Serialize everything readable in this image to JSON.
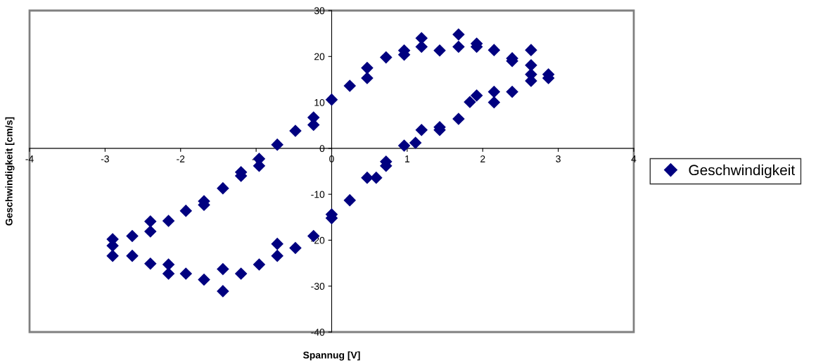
{
  "chart_data": {
    "type": "scatter",
    "xlabel": "Spannug [V]",
    "ylabel": "Geschwindigkeit [cm/s]",
    "x": [
      -2.9,
      -2.9,
      -2.9,
      -2.64,
      -2.64,
      -2.4,
      -2.4,
      -2.4,
      -2.16,
      -2.16,
      -2.16,
      -1.93,
      -1.93,
      -1.69,
      -1.69,
      -1.69,
      -1.44,
      -1.44,
      -1.44,
      -1.2,
      -1.2,
      -1.2,
      -0.96,
      -0.96,
      -0.96,
      -0.72,
      -0.72,
      -0.72,
      -0.48,
      -0.48,
      -0.24,
      -0.24,
      -0.24,
      0,
      0,
      0,
      0.24,
      0.24,
      0.47,
      0.47,
      0.47,
      0.59,
      0.72,
      0.72,
      0.72,
      0.96,
      0.96,
      0.96,
      1.11,
      1.19,
      1.19,
      1.19,
      1.43,
      1.43,
      1.43,
      1.68,
      1.68,
      1.68,
      1.83,
      1.92,
      1.92,
      1.92,
      2.15,
      2.15,
      2.15,
      2.39,
      2.39,
      2.39,
      2.64,
      2.64,
      2.64,
      2.64,
      2.87,
      2.87
    ],
    "series": [
      {
        "name": "Geschwindigkeit",
        "color": "#000080",
        "values": [
          -19.8,
          -21.2,
          -23.4,
          -19.1,
          -23.4,
          -15.9,
          -18.1,
          -25.1,
          -15.8,
          -25.3,
          -27.3,
          -13.6,
          -27.3,
          -11.5,
          -12.3,
          -28.6,
          -8.7,
          -26.3,
          -31.1,
          -5.2,
          -6.0,
          -27.3,
          -2.3,
          -3.8,
          -25.3,
          0.8,
          -20.8,
          -23.4,
          3.8,
          -21.7,
          6.7,
          5.1,
          -19.1,
          10.6,
          -14.4,
          -15.2,
          13.6,
          -11.3,
          17.5,
          15.3,
          -6.4,
          -6.4,
          19.8,
          -2.9,
          -3.8,
          21.3,
          20.4,
          0.6,
          1.2,
          24.0,
          22.1,
          4.0,
          21.3,
          4.6,
          4.0,
          24.8,
          22.1,
          6.4,
          10.1,
          22.8,
          22.1,
          11.5,
          21.4,
          12.3,
          10.0,
          19.6,
          19.0,
          12.3,
          21.4,
          18.1,
          16.1,
          14.7,
          16.1,
          15.3
        ]
      }
    ],
    "xlim": [
      -4,
      4
    ],
    "xticks": [
      -4,
      -3,
      -2,
      -1,
      0,
      1,
      2,
      3,
      4
    ],
    "ylim": [
      -40,
      30
    ],
    "yticks": [
      -40,
      -30,
      -20,
      -10,
      0,
      10,
      20,
      30
    ],
    "grid": false,
    "legend": "right",
    "marker": "diamond"
  }
}
